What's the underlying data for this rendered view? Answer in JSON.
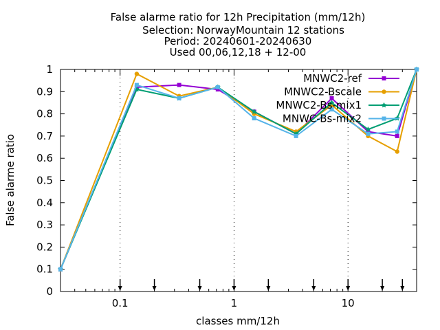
{
  "chart_data": {
    "type": "line",
    "title_lines": [
      "False alarme ratio  for 12h Precipitation (mm/12h)",
      "Selection: NorwayMountain     12 stations",
      "Period: 20240601-20240630",
      "Used 00,06,12,18 + 12-00"
    ],
    "xlabel": "classes mm/12h",
    "ylabel": "False alarme ratio",
    "x_scale": "log",
    "xlim": [
      0.03,
      40
    ],
    "ylim": [
      0,
      1
    ],
    "x_ticks": [
      {
        "value": 0.1,
        "label": "0.1"
      },
      {
        "value": 1,
        "label": "1"
      },
      {
        "value": 10,
        "label": "10"
      }
    ],
    "y_ticks": [
      {
        "value": 0,
        "label": "0"
      },
      {
        "value": 0.1,
        "label": "0.1"
      },
      {
        "value": 0.2,
        "label": "0.2"
      },
      {
        "value": 0.3,
        "label": "0.3"
      },
      {
        "value": 0.4,
        "label": "0.4"
      },
      {
        "value": 0.5,
        "label": "0.5"
      },
      {
        "value": 0.6,
        "label": "0.6"
      },
      {
        "value": 0.7,
        "label": "0.7"
      },
      {
        "value": 0.8,
        "label": "0.8"
      },
      {
        "value": 0.9,
        "label": "0.9"
      },
      {
        "value": 1,
        "label": "1"
      }
    ],
    "threshold_arrows": [
      0.1,
      0.2,
      0.5,
      1,
      2,
      5,
      10,
      20,
      30
    ],
    "legend_position": "top-right",
    "grid": false,
    "series": [
      {
        "name": "MNWC2-ref",
        "color": "#9400d3",
        "marker": "square",
        "x": [
          0.03,
          0.14,
          0.33,
          0.72,
          1.5,
          3.5,
          7.2,
          15,
          27,
          40
        ],
        "y": [
          0.1,
          0.92,
          0.93,
          0.91,
          0.81,
          0.71,
          0.87,
          0.72,
          0.7,
          1.0
        ]
      },
      {
        "name": "MNWC2-Bscale",
        "color": "#e69f00",
        "marker": "circle",
        "x": [
          0.03,
          0.14,
          0.33,
          0.72,
          1.5,
          3.5,
          7.2,
          15,
          27,
          40
        ],
        "y": [
          0.1,
          0.98,
          0.88,
          0.92,
          0.8,
          0.72,
          0.84,
          0.7,
          0.63,
          1.0
        ]
      },
      {
        "name": "MNWC2-Bs-mix1",
        "color": "#009e73",
        "marker": "star",
        "x": [
          0.03,
          0.14,
          0.33,
          0.72,
          1.5,
          3.5,
          7.2,
          15,
          27,
          40
        ],
        "y": [
          0.1,
          0.91,
          0.87,
          0.92,
          0.81,
          0.71,
          0.85,
          0.73,
          0.78,
          1.0
        ]
      },
      {
        "name": "MNWC-Bs-mix2",
        "color": "#56b4e9",
        "marker": "square",
        "x": [
          0.03,
          0.14,
          0.33,
          0.72,
          1.5,
          3.5,
          7.2,
          15,
          27,
          40
        ],
        "y": [
          0.1,
          0.93,
          0.87,
          0.92,
          0.78,
          0.7,
          0.82,
          0.71,
          0.72,
          1.0
        ]
      }
    ]
  }
}
